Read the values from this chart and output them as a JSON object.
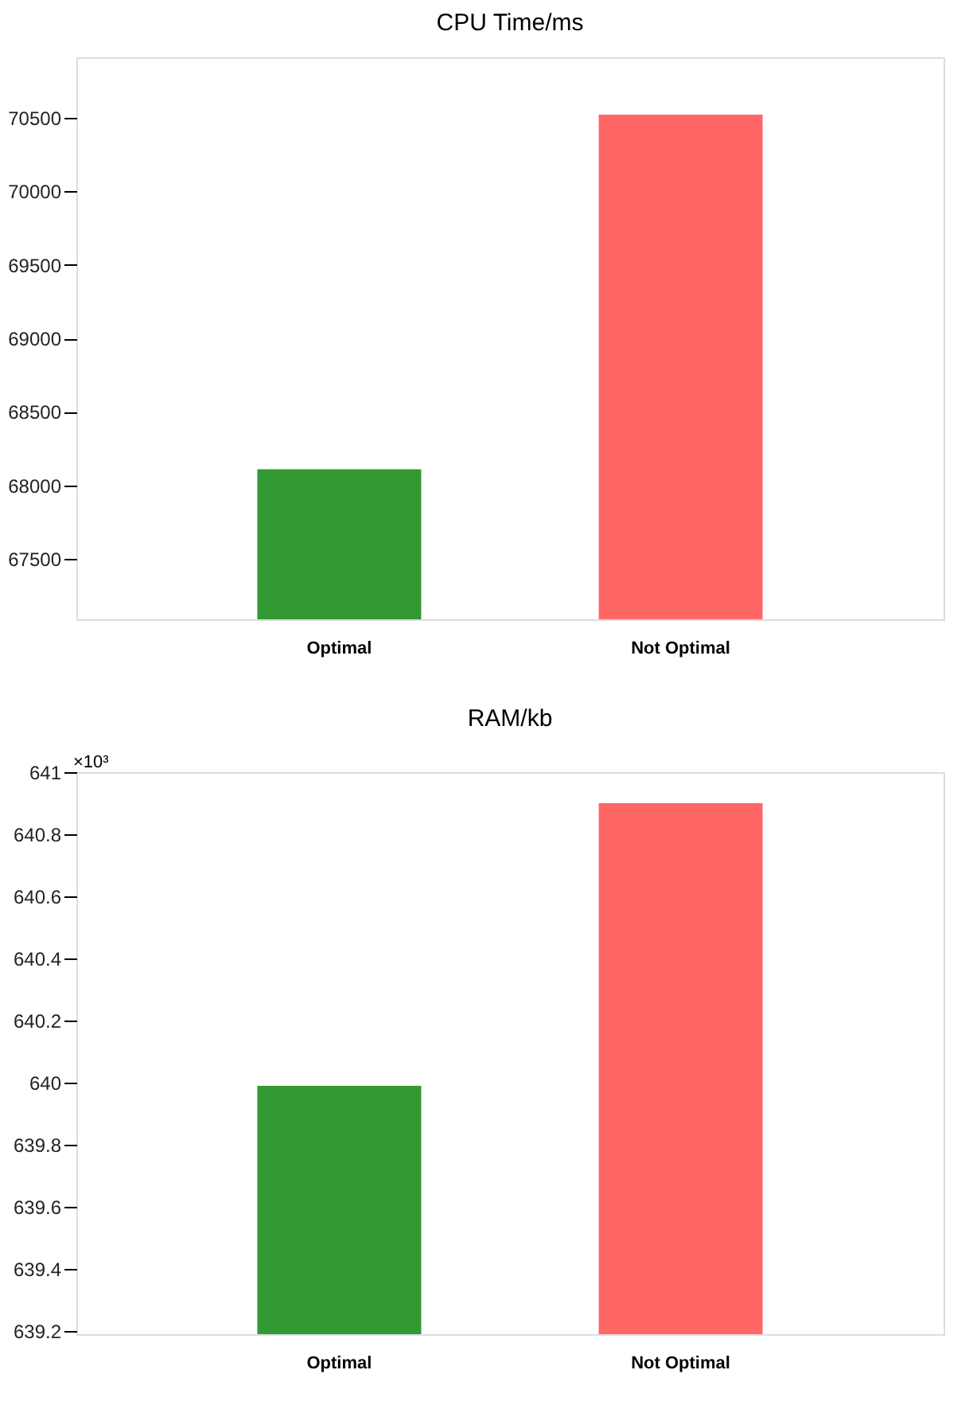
{
  "chart_data": [
    {
      "type": "bar",
      "title": "CPU Time/ms",
      "categories": [
        "Optimal",
        "Not Optimal"
      ],
      "values": [
        68110,
        70520
      ],
      "colors": [
        "#339933",
        "#ff6666"
      ],
      "ylim": [
        67090,
        70910
      ],
      "yticks": [
        67500,
        68000,
        68500,
        69000,
        69500,
        70000,
        70500
      ],
      "grid": false
    },
    {
      "type": "bar",
      "title": "RAM/kb",
      "categories": [
        "Optimal",
        "Not Optimal"
      ],
      "values": [
        639.99,
        640.9
      ],
      "colors": [
        "#339933",
        "#ff6666"
      ],
      "ylim": [
        639.19,
        641
      ],
      "yticks": [
        639.2,
        639.4,
        639.6,
        639.8,
        640,
        640.2,
        640.4,
        640.6,
        640.8,
        641
      ],
      "grid": false,
      "annotations": [
        "×10³"
      ]
    }
  ]
}
